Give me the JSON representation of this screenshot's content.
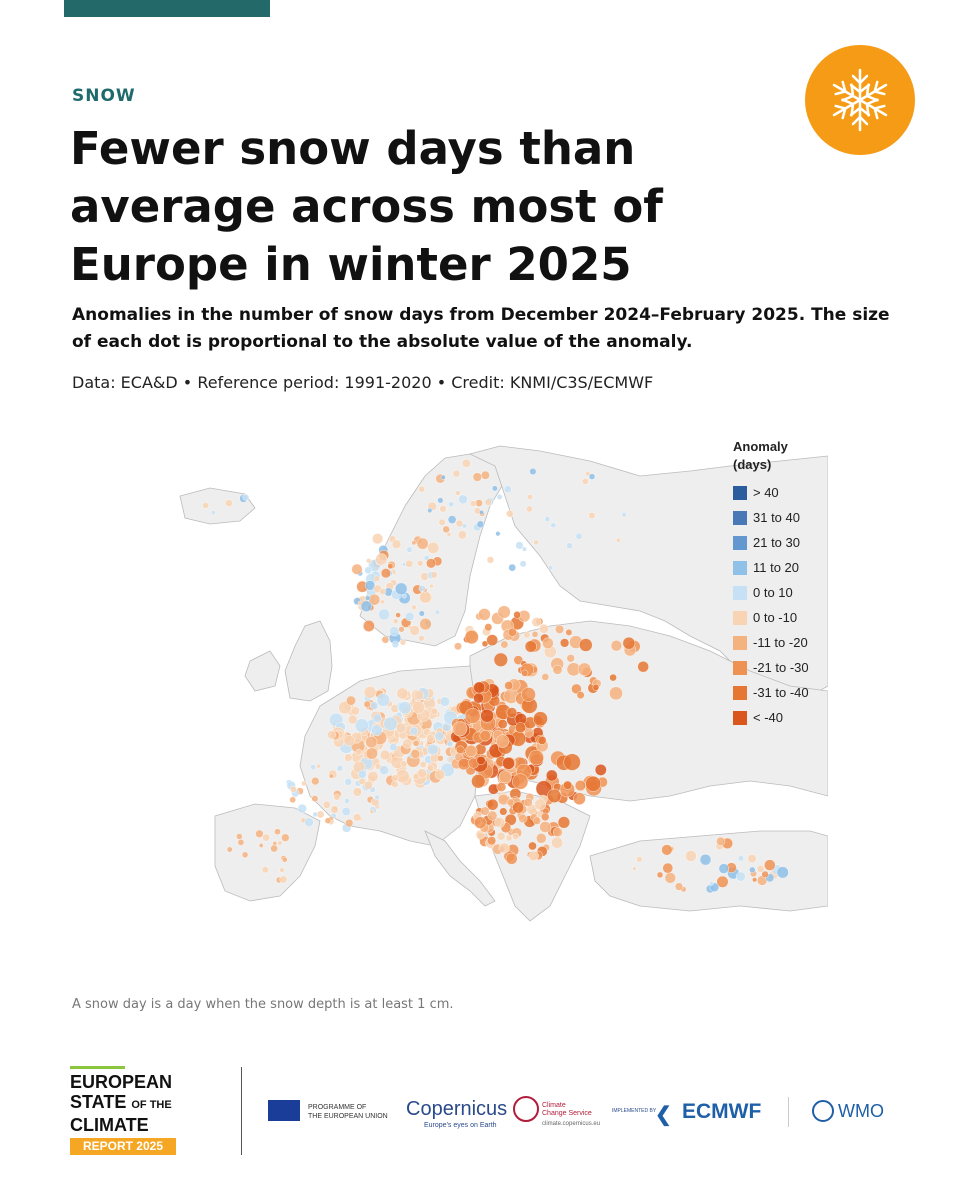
{
  "header": {
    "category": "SNOW",
    "title": "Fewer snow days than average across most of Europe in winter 2025",
    "subtitle": "Anomalies in the number of snow days from December 2024–February 2025. The size of each dot is proportional to the absolute value of the anomaly.",
    "source": "Data: ECA&D • Reference period: 1991-2020 • Credit: KNMI/C3S/ECMWF",
    "badge_icon": "snowflake-icon",
    "badge_color": "#F59B16"
  },
  "legend": {
    "title_line1": "Anomaly",
    "title_line2": "(days)",
    "items": [
      {
        "label": "> 40",
        "color": "#2B5C9E"
      },
      {
        "label": "31 to 40",
        "color": "#4878B5"
      },
      {
        "label": "21 to 30",
        "color": "#6397CF"
      },
      {
        "label": "11 to 20",
        "color": "#8EC0E8"
      },
      {
        "label": "0 to 10",
        "color": "#C6E1F5"
      },
      {
        "label": "0 to -10",
        "color": "#F8D3B4"
      },
      {
        "label": "-11 to -20",
        "color": "#F4B27F"
      },
      {
        "label": "-21 to -30",
        "color": "#EE9253"
      },
      {
        "label": "-31 to -40",
        "color": "#E57633"
      },
      {
        "label": "< -40",
        "color": "#D9561C"
      }
    ]
  },
  "map": {
    "land_color": "#EEEEEE",
    "sea_color": "#FFFFFF",
    "border_color": "#BBBBBB"
  },
  "footnote": "A snow day is a day when the snow depth is at least 1 cm.",
  "footer": {
    "brand_line1": "EUROPEAN",
    "brand_line2": "STATE",
    "brand_line2_small": "OF THE",
    "brand_line3": "CLIMATE",
    "report": "REPORT 2025",
    "eu_line1": "PROGRAMME OF",
    "eu_line2": "THE EUROPEAN UNION",
    "copernicus": "opernicus",
    "copernicus_tagline": "Europe's eyes on Earth",
    "c3s_line1": "Climate",
    "c3s_line2": "Change Service",
    "c3s_url": "climate.copernicus.eu",
    "implemented_by": "IMPLEMENTED BY",
    "ecmwf": "ECMWF",
    "wmo": "WMO"
  }
}
